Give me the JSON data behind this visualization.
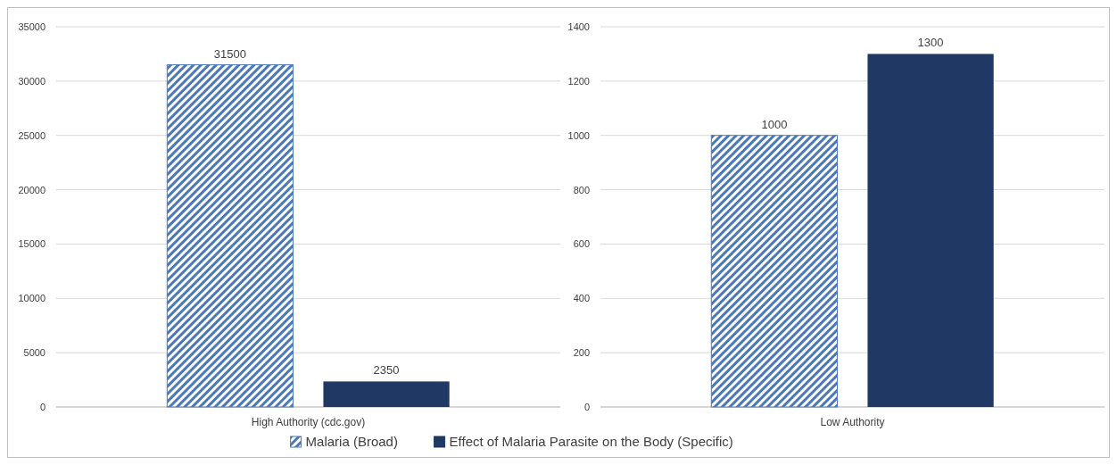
{
  "chart_data": [
    {
      "type": "bar",
      "categories": [
        "High Authority (cdc.gov)"
      ],
      "series": [
        {
          "name": "Malaria (Broad)",
          "color": "#4a78b8",
          "values": [
            31500
          ]
        },
        {
          "name": "Effect of Malaria Parasite on the Body (Specific)",
          "color": "#1f3864",
          "values": [
            2350
          ]
        }
      ],
      "ylim": [
        0,
        35000
      ],
      "yticks": [
        0,
        5000,
        10000,
        15000,
        20000,
        25000,
        30000,
        35000
      ],
      "grid": "y",
      "data_labels": true,
      "legend": "bottom"
    },
    {
      "type": "bar",
      "categories": [
        "Low Authority"
      ],
      "series": [
        {
          "color": "#4a78b8",
          "values": [
            1000
          ]
        },
        {
          "color": "#1f3864",
          "values": [
            1300
          ]
        }
      ],
      "ylim": [
        0,
        1400
      ],
      "yticks": [
        0,
        200,
        400,
        600,
        800,
        1000,
        1200,
        1400
      ],
      "grid": "y",
      "data_labels": true
    }
  ]
}
